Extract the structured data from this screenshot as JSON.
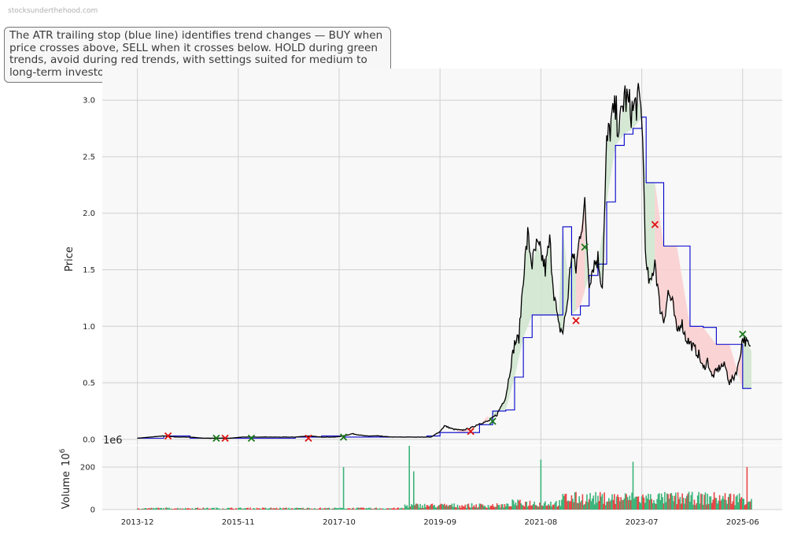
{
  "watermark": "stocksunderthehood.com",
  "info_text": "The ATR trailing stop (blue line) identifies trend changes — BUY when price crosses above, SELL when it crosses below. HOLD during green trends, avoid during red trends, with settings suited for medium to long-term investors.",
  "colors": {
    "price": "#000000",
    "stop": "#0000cc",
    "bull_fill": "#cfe6cf",
    "bear_fill": "#f9cfcf",
    "buy_marker": "#1a7a1a",
    "sell_marker": "#dd1111",
    "vol_up": "#3cb47a",
    "vol_down": "#e84545",
    "grid": "#d0d0d0",
    "panel_bg": "#f8f8f8"
  },
  "chart_data": [
    {
      "type": "line",
      "ylabel": "Price",
      "ylim": [
        -0.05,
        3.28
      ],
      "yticks": [
        "0.0",
        "0.5",
        "1.0",
        "1.5",
        "2.0",
        "2.5",
        "3.0"
      ],
      "xlim": [
        "2013-04",
        "2026-03"
      ],
      "xticks": [
        "2013-12",
        "2015-11",
        "2017-10",
        "2019-09",
        "2021-08",
        "2023-07",
        "2025-06"
      ],
      "grid": true,
      "series": [
        {
          "role": "price",
          "x": [
            "2013-12",
            "2014-03",
            "2014-06",
            "2014-09",
            "2014-12",
            "2015-03",
            "2015-06",
            "2015-09",
            "2015-12",
            "2016-03",
            "2016-06",
            "2016-09",
            "2016-12",
            "2017-03",
            "2017-06",
            "2017-09",
            "2017-11",
            "2018-01",
            "2018-04",
            "2018-07",
            "2018-10",
            "2019-01",
            "2019-04",
            "2019-07",
            "2019-09",
            "2019-10",
            "2019-12",
            "2020-02",
            "2020-04",
            "2020-06",
            "2020-08",
            "2020-10",
            "2020-12",
            "2021-01",
            "2021-02",
            "2021-03",
            "2021-04",
            "2021-05",
            "2021-06",
            "2021-07",
            "2021-08",
            "2021-09",
            "2021-10",
            "2021-11",
            "2021-12",
            "2022-01",
            "2022-02",
            "2022-03",
            "2022-04",
            "2022-05",
            "2022-06",
            "2022-07",
            "2022-08",
            "2022-09",
            "2022-10",
            "2022-11",
            "2022-12",
            "2023-01",
            "2023-02",
            "2023-03",
            "2023-04",
            "2023-05",
            "2023-06",
            "2023-07",
            "2023-08",
            "2023-09",
            "2023-10",
            "2023-11",
            "2023-12",
            "2024-01",
            "2024-02",
            "2024-03",
            "2024-04",
            "2024-05",
            "2024-06",
            "2024-07",
            "2024-08",
            "2024-09",
            "2024-10",
            "2024-11",
            "2024-12",
            "2025-01",
            "2025-02",
            "2025-03",
            "2025-04",
            "2025-05",
            "2025-06",
            "2025-07",
            "2025-08"
          ],
          "values": [
            0.01,
            0.02,
            0.03,
            0.02,
            0.02,
            0.01,
            0.01,
            0.01,
            0.02,
            0.02,
            0.02,
            0.02,
            0.02,
            0.03,
            0.02,
            0.02,
            0.03,
            0.05,
            0.03,
            0.03,
            0.02,
            0.02,
            0.02,
            0.02,
            0.07,
            0.12,
            0.09,
            0.08,
            0.1,
            0.14,
            0.16,
            0.22,
            0.38,
            0.62,
            0.85,
            0.9,
            1.45,
            1.8,
            1.55,
            1.7,
            1.65,
            1.5,
            1.75,
            1.3,
            1.0,
            0.95,
            1.2,
            1.65,
            1.5,
            1.85,
            2.05,
            1.4,
            1.55,
            1.6,
            1.35,
            2.6,
            2.8,
            2.9,
            2.75,
            3.05,
            2.95,
            2.9,
            3.0,
            2.9,
            1.5,
            1.35,
            1.6,
            1.2,
            1.05,
            1.3,
            1.2,
            0.95,
            1.05,
            0.9,
            0.85,
            0.8,
            0.75,
            0.62,
            0.7,
            0.55,
            0.6,
            0.65,
            0.65,
            0.5,
            0.55,
            0.65,
            0.9,
            0.85,
            0.78
          ]
        },
        {
          "role": "stop",
          "x": [
            "2013-12",
            "2014-06",
            "2014-12",
            "2015-06",
            "2015-12",
            "2016-06",
            "2016-12",
            "2017-06",
            "2017-11",
            "2018-06",
            "2018-12",
            "2019-06",
            "2019-09",
            "2019-12",
            "2020-03",
            "2020-06",
            "2020-09",
            "2020-12",
            "2021-02",
            "2021-04",
            "2021-06",
            "2021-08",
            "2021-10",
            "2021-12",
            "2022-01",
            "2022-03",
            "2022-05",
            "2022-07",
            "2022-09",
            "2022-11",
            "2023-01",
            "2023-03",
            "2023-05",
            "2023-07",
            "2023-08",
            "2023-10",
            "2023-12",
            "2024-03",
            "2024-06",
            "2024-09",
            "2024-12",
            "2025-03",
            "2025-06",
            "2025-08"
          ],
          "values": [
            0.01,
            0.03,
            0.01,
            0.01,
            0.01,
            0.01,
            0.02,
            0.03,
            0.02,
            0.02,
            0.02,
            0.03,
            0.06,
            0.06,
            0.06,
            0.13,
            0.25,
            0.26,
            0.55,
            0.9,
            1.1,
            1.1,
            1.1,
            1.1,
            1.88,
            1.1,
            1.18,
            1.45,
            1.55,
            2.1,
            2.6,
            2.7,
            2.75,
            2.85,
            2.27,
            2.27,
            1.71,
            1.71,
            1.0,
            0.99,
            0.84,
            0.84,
            0.45,
            0.45
          ]
        }
      ],
      "signals": [
        {
          "date": "2014-07",
          "price": 0.03,
          "side": "sell"
        },
        {
          "date": "2015-06",
          "price": 0.01,
          "side": "buy"
        },
        {
          "date": "2015-08",
          "price": 0.01,
          "side": "sell"
        },
        {
          "date": "2016-02",
          "price": 0.01,
          "side": "buy"
        },
        {
          "date": "2017-03",
          "price": 0.01,
          "side": "sell"
        },
        {
          "date": "2017-11",
          "price": 0.02,
          "side": "buy"
        },
        {
          "date": "2020-04",
          "price": 0.07,
          "side": "sell"
        },
        {
          "date": "2020-09",
          "price": 0.16,
          "side": "buy"
        },
        {
          "date": "2022-04",
          "price": 1.05,
          "side": "sell"
        },
        {
          "date": "2022-06",
          "price": 1.7,
          "side": "buy"
        },
        {
          "date": "2023-10",
          "price": 1.9,
          "side": "sell"
        },
        {
          "date": "2025-06",
          "price": 0.93,
          "side": "buy"
        }
      ],
      "trend_zones": [
        {
          "from": "2014-03",
          "to": "2015-06",
          "trend": "bear"
        },
        {
          "from": "2016-09",
          "to": "2017-09",
          "trend": "bear"
        },
        {
          "from": "2020-01",
          "to": "2020-08",
          "trend": "bear"
        },
        {
          "from": "2020-09",
          "to": "2022-04",
          "trend": "bull"
        },
        {
          "from": "2022-04",
          "to": "2022-06",
          "trend": "bear"
        },
        {
          "from": "2022-06",
          "to": "2023-10",
          "trend": "bull"
        },
        {
          "from": "2023-10",
          "to": "2025-06",
          "trend": "bear"
        },
        {
          "from": "2025-06",
          "to": "2025-08",
          "trend": "bull"
        }
      ]
    },
    {
      "type": "bar",
      "ylabel": "Volume",
      "yunit": "1e6",
      "yaxis_label_suffix": "10",
      "yaxis_label_exponent": "6",
      "ylim": [
        0,
        300
      ],
      "yticks": [
        "0",
        "200"
      ],
      "grid": true,
      "spikes": [
        {
          "date": "2017-11",
          "value": 200,
          "dir": "up"
        },
        {
          "date": "2019-02",
          "value": 300,
          "dir": "up"
        },
        {
          "date": "2019-03",
          "value": 180,
          "dir": "up"
        },
        {
          "date": "2021-08",
          "value": 235,
          "dir": "up"
        },
        {
          "date": "2023-05",
          "value": 225,
          "dir": "up"
        },
        {
          "date": "2025-07",
          "value": 200,
          "dir": "down"
        }
      ]
    }
  ]
}
